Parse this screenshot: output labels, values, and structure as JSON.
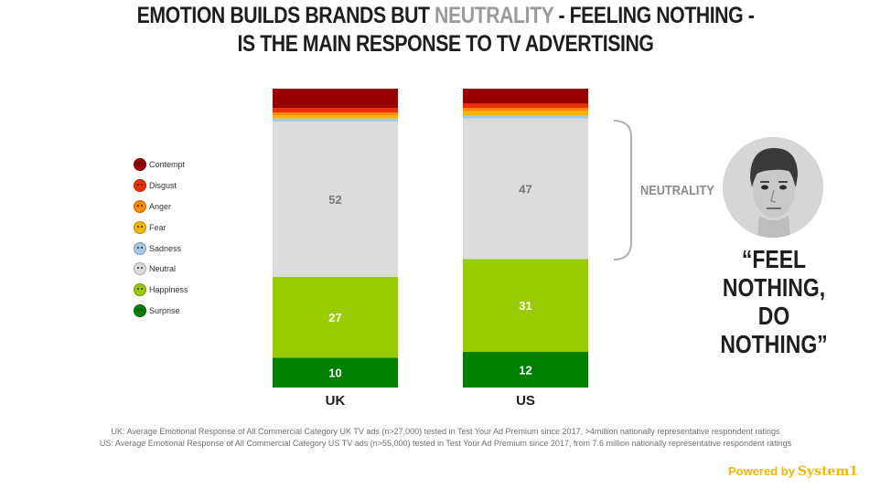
{
  "title": {
    "line1_before": "EMOTION BUILDS BRANDS BUT ",
    "line1_highlight": "NEUTRALITY",
    "line1_after": " - FEELING NOTHING -",
    "line2": "IS THE MAIN RESPONSE TO TV ADVERTISING"
  },
  "chart_data": {
    "type": "bar",
    "stacked": true,
    "categories": [
      "UK",
      "US"
    ],
    "series": [
      {
        "name": "Surprise",
        "color": "#008000",
        "values": [
          10,
          12
        ]
      },
      {
        "name": "Happiness",
        "color": "#99cc00",
        "values": [
          27,
          31
        ]
      },
      {
        "name": "Neutral",
        "color": "#dcdcdc",
        "values": [
          52,
          47
        ]
      },
      {
        "name": "Sadness",
        "color": "#a8c8e8",
        "values": [
          1,
          1
        ]
      },
      {
        "name": "Fear",
        "color": "#f5b800",
        "values": [
          1,
          1.5
        ]
      },
      {
        "name": "Anger",
        "color": "#ff8c00",
        "values": [
          1,
          1
        ]
      },
      {
        "name": "Disgust",
        "color": "#ee2d00",
        "values": [
          1.5,
          1.5
        ]
      },
      {
        "name": "Contempt",
        "color": "#990000",
        "values": [
          6.5,
          5
        ]
      }
    ],
    "data_labels": {
      "Surprise": [
        10,
        12
      ],
      "Happiness": [
        27,
        31
      ],
      "Neutral": [
        52,
        47
      ]
    },
    "ylim": [
      0,
      100
    ],
    "legend_order": [
      "Contempt",
      "Disgust",
      "Anger",
      "Fear",
      "Sadness",
      "Neutral",
      "Happiness",
      "Surprise"
    ],
    "legend_placement": "left",
    "grid": false
  },
  "annotation": {
    "neutrality_label": "NEUTRALITY",
    "quote_line1": "“FEEL NOTHING,",
    "quote_line2": "DO NOTHING”"
  },
  "footnotes": [
    "UK: Average Emotional Response of All Commercial Category UK TV ads (n>27,000) tested in Test Your Ad Premium since 2017, >4million nationally representative respondent ratings",
    "US: Average Emotional Response of All Commercial Category US TV ads (n>55,000) tested in Test Your Ad Premium since 2017, from 7.6 million nationally representative respondent ratings"
  ],
  "powered_by": {
    "prefix": "Powered by",
    "brand": "System1"
  }
}
